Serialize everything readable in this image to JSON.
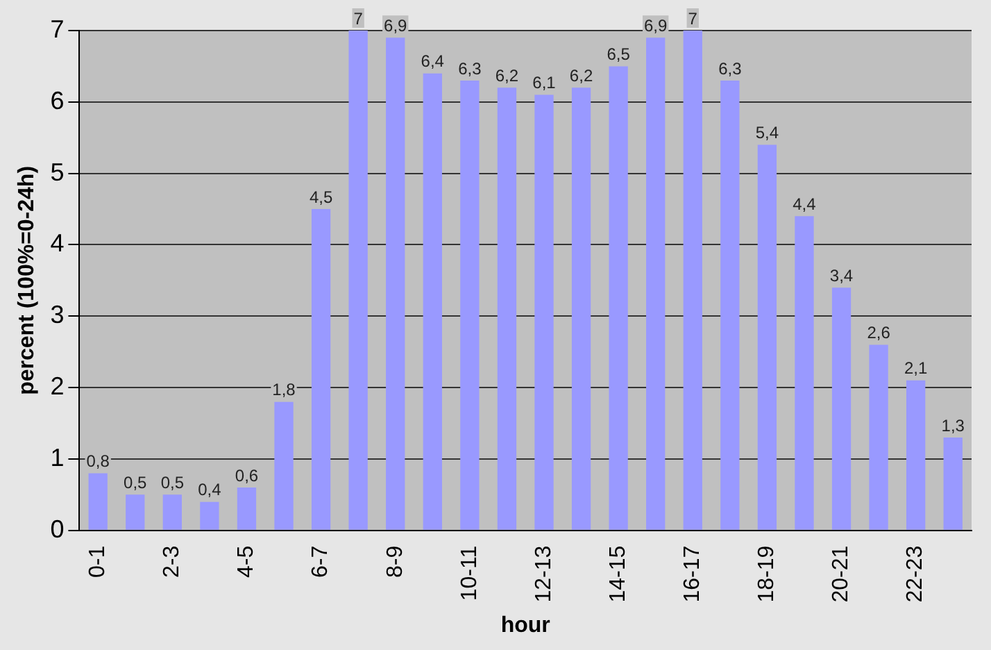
{
  "chart_data": {
    "type": "bar",
    "xlabel": "hour",
    "ylabel": "percent (100%=0-24h)",
    "categories": [
      "0-1",
      null,
      "2-3",
      null,
      "4-5",
      null,
      "6-7",
      null,
      "8-9",
      null,
      "10-11",
      null,
      "12-13",
      null,
      "14-15",
      null,
      "16-17",
      null,
      "18-19",
      null,
      "20-21",
      null,
      "22-23",
      null
    ],
    "values": [
      0.8,
      0.5,
      0.5,
      0.4,
      0.6,
      1.8,
      4.5,
      7,
      6.9,
      6.4,
      6.3,
      6.2,
      6.1,
      6.2,
      6.5,
      6.9,
      7,
      6.3,
      5.4,
      4.4,
      3.4,
      2.6,
      2.1,
      1.3
    ],
    "value_labels": [
      "0,8",
      "0,5",
      "0,5",
      "0,4",
      "0,6",
      "1,8",
      "4,5",
      "7",
      "6,9",
      "6,4",
      "6,3",
      "6,2",
      "6,1",
      "6,2",
      "6,5",
      "6,9",
      "7",
      "6,3",
      "5,4",
      "4,4",
      "3,4",
      "2,6",
      "2,1",
      "1,3"
    ],
    "color": "#9999ff",
    "ylim": [
      0,
      7
    ],
    "yticks": [
      0,
      1,
      2,
      3,
      4,
      5,
      6,
      7
    ],
    "grid": "y",
    "legend": false
  }
}
